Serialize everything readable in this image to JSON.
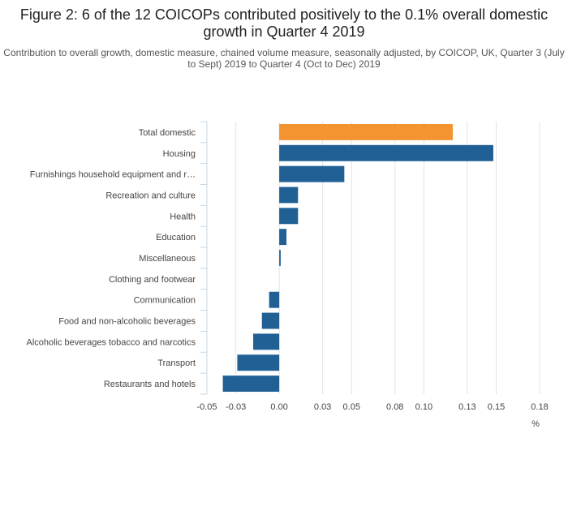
{
  "title": "Figure 2: 6 of the 12 COICOPs contributed positively to the 0.1% overall domestic growth in Quarter 4 2019",
  "subtitle": "Contribution to overall growth, domestic measure, chained volume measure, seasonally adjusted, by COICOP, UK, Quarter 3 (July to Sept) 2019 to Quarter 4 (Oct to Dec) 2019",
  "colors": {
    "highlight": "#f39431",
    "default": "#206095",
    "grid": "#e3e3e3",
    "axis": "#c6d6e6"
  },
  "chart_data": {
    "type": "bar",
    "orientation": "horizontal",
    "categories": [
      "Total domestic",
      "Housing",
      "Furnishings household equipment and r…",
      "Recreation and culture",
      "Health",
      "Education",
      "Miscellaneous",
      "Clothing and footwear",
      "Communication",
      "Food and non-alcoholic beverages",
      "Alcoholic beverages tobacco and narcotics",
      "Transport",
      "Restaurants and hotels"
    ],
    "values": [
      0.12,
      0.148,
      0.045,
      0.013,
      0.013,
      0.005,
      0.001,
      0.0,
      -0.007,
      -0.012,
      -0.018,
      -0.029,
      -0.039
    ],
    "highlight_index": 0,
    "xlabel": "%",
    "xlim": [
      -0.05,
      0.18
    ],
    "xticks": [
      -0.05,
      -0.03,
      0.0,
      0.03,
      0.05,
      0.08,
      0.1,
      0.13,
      0.15,
      0.18
    ],
    "xtick_labels": [
      "-0.05",
      "-0.03",
      "0.00",
      "0.03",
      "0.05",
      "0.08",
      "0.10",
      "0.13",
      "0.15",
      "0.18"
    ],
    "grid": true
  }
}
